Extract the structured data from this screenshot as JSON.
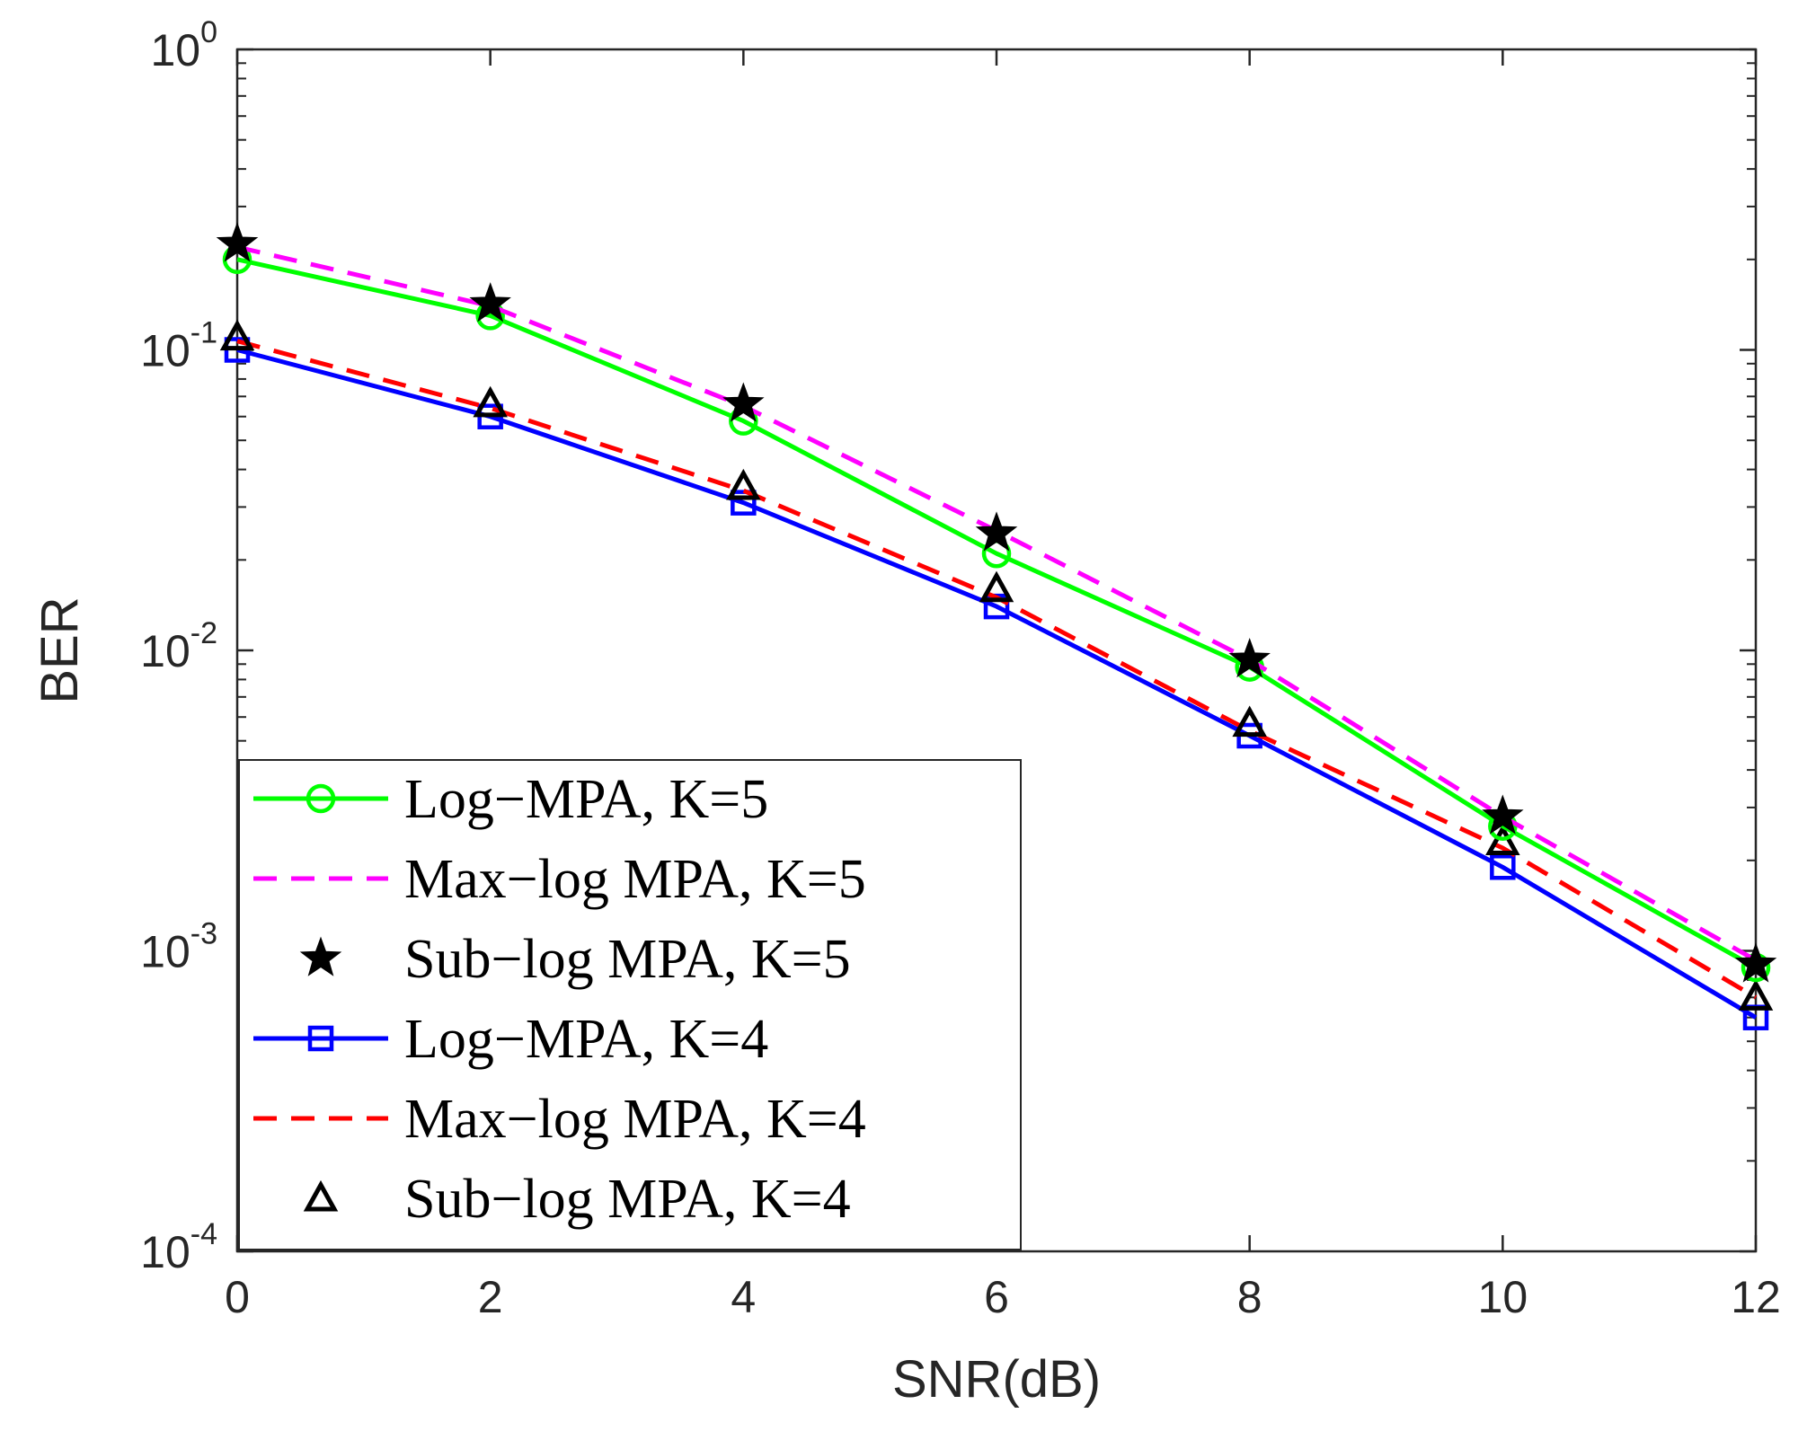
{
  "chart_data": {
    "type": "line",
    "xlabel": "SNR(dB)",
    "ylabel": "BER",
    "xlim": [
      0,
      12
    ],
    "ylim": [
      0.0001,
      1
    ],
    "yscale": "log",
    "xticks": [
      0,
      2,
      4,
      6,
      8,
      10,
      12
    ],
    "yticks": [
      {
        "value": 1,
        "base": "10",
        "exp": "0"
      },
      {
        "value": 0.1,
        "base": "10",
        "exp": "-1"
      },
      {
        "value": 0.01,
        "base": "10",
        "exp": "-2"
      },
      {
        "value": 0.001,
        "base": "10",
        "exp": "-3"
      },
      {
        "value": 0.0001,
        "base": "10",
        "exp": "-4"
      }
    ],
    "grid": false,
    "legend_position": "bottom-left",
    "x": [
      0,
      2,
      4,
      6,
      8,
      10,
      12
    ],
    "series": [
      {
        "name": "Log−MPA, K=5",
        "values": [
          0.2,
          0.13,
          0.058,
          0.021,
          0.0088,
          0.0026,
          0.00088
        ],
        "color": "#00ff00",
        "line": "solid",
        "marker": "circle"
      },
      {
        "name": "Max−log MPA, K=5",
        "values": [
          0.22,
          0.14,
          0.065,
          0.025,
          0.0093,
          0.0028,
          0.00093
        ],
        "color": "#ff00ff",
        "line": "dashed",
        "marker": "none"
      },
      {
        "name": "Sub−log MPA, K=5",
        "values": [
          0.225,
          0.142,
          0.066,
          0.0245,
          0.0093,
          0.0028,
          0.0009
        ],
        "color": "#000000",
        "line": "none",
        "marker": "star"
      },
      {
        "name": "Log−MPA, K=4",
        "values": [
          0.1,
          0.06,
          0.031,
          0.014,
          0.0052,
          0.0019,
          0.0006
        ],
        "color": "#0000ff",
        "line": "solid",
        "marker": "square"
      },
      {
        "name": "Max−log MPA, K=4",
        "values": [
          0.107,
          0.064,
          0.034,
          0.015,
          0.0054,
          0.0022,
          0.0007
        ],
        "color": "#ff0000",
        "line": "dashed",
        "marker": "none"
      },
      {
        "name": "Sub−log MPA, K=4",
        "values": [
          0.11,
          0.066,
          0.035,
          0.016,
          0.0057,
          0.0023,
          0.0007
        ],
        "color": "#000000",
        "line": "none",
        "marker": "triangle"
      }
    ]
  }
}
